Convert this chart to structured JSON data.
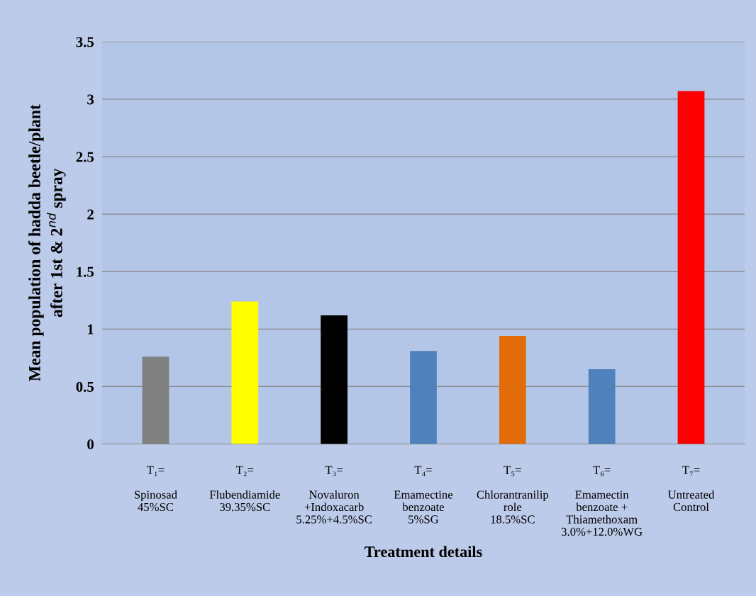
{
  "chart_data": {
    "type": "bar",
    "xlabel": "Treatment details",
    "ylabel": "Mean population of hadda beetle/plant\nafter 1st & 2$^{nd}$ spray",
    "categories": [
      "T₁=\n\nSpinosad\n45%SC",
      "T₂=\n\nFlubendiamide\n39.35%SC",
      "T₃=\n\nNovaluron\n+Indoxacarb\n5.25%+4.5%SC",
      "T₄=\n\nEmamectine\nbenzoate\n5%SG",
      "T₅=\n\nChlorantranilip\nrole\n18.5%SC",
      "T₆=\n\nEmamectin\nbenzoate +\nThiamethoxam\n3.0%+12.0%WG",
      "T₇=\n\nUntreated\nControl"
    ],
    "values": [
      0.76,
      1.24,
      1.12,
      0.81,
      0.94,
      0.65,
      3.07
    ],
    "colors": [
      "#808080",
      "#ffff00",
      "#000000",
      "#4f81bd",
      "#e36c0a",
      "#4f81bd",
      "#ff0000"
    ],
    "ylim": [
      0,
      3.5
    ],
    "yticks": [
      0,
      0.5,
      1,
      1.5,
      2,
      2.5,
      3,
      3.5
    ],
    "grid": "y",
    "legend": false
  }
}
